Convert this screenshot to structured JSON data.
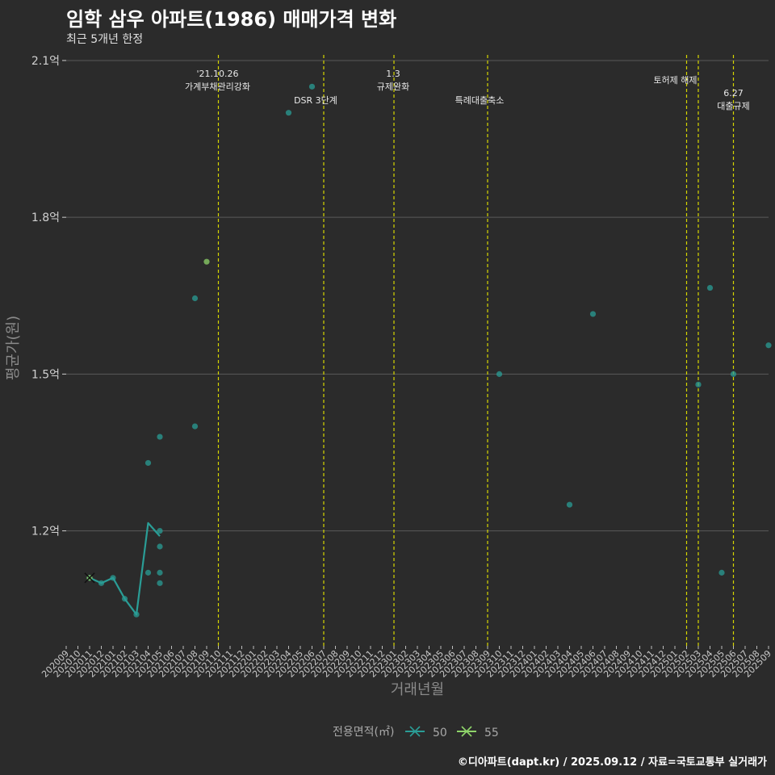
{
  "title": "임학 삼우 아파트(1986) 매매가격 변화",
  "subtitle": "최근 5개년 한정",
  "caption": "©디아파트(dapt.kr) / 2025.09.12 / 자료=국토교통부 실거래가",
  "colors": {
    "s50": "#2a9d96",
    "s55": "#8fd46a",
    "vline": "#d6d600",
    "grid": "#5a5a5a",
    "bg": "#2b2b2b"
  },
  "chart_data": {
    "type": "line",
    "xlabel": "거래년월",
    "ylabel": "평균가(원)",
    "ylim": [
      0.98,
      2.12
    ],
    "yticks": [
      1.2,
      1.5,
      1.8,
      2.1
    ],
    "ytick_labels": [
      "1.2억",
      "1.5억",
      "1.8억",
      "2.1억"
    ],
    "categories": [
      "202009",
      "202010",
      "202011",
      "202012",
      "202101",
      "202102",
      "202103",
      "202104",
      "202105",
      "202106",
      "202107",
      "202108",
      "202109",
      "202110",
      "202111",
      "202112",
      "202201",
      "202202",
      "202203",
      "202204",
      "202205",
      "202206",
      "202207",
      "202208",
      "202209",
      "202210",
      "202211",
      "202212",
      "202301",
      "202302",
      "202303",
      "202304",
      "202305",
      "202306",
      "202307",
      "202308",
      "202309",
      "202310",
      "202311",
      "202312",
      "202401",
      "202402",
      "202403",
      "202404",
      "202405",
      "202406",
      "202407",
      "202408",
      "202409",
      "202410",
      "202411",
      "202412",
      "202501",
      "202502",
      "202503",
      "202504",
      "202505",
      "202506",
      "202507",
      "202508",
      "202509"
    ],
    "events": [
      {
        "x": "202110",
        "lines": [
          "'21.10.26",
          "가계부채관리강화"
        ]
      },
      {
        "x": "202207",
        "lines": [
          "DSR 3단계"
        ]
      },
      {
        "x": "202301",
        "lines": [
          "1.3",
          "규제완화"
        ]
      },
      {
        "x": "202309",
        "lines": [
          "특례대출축소"
        ]
      },
      {
        "x": "202502",
        "lines": [
          "토허제 해제"
        ]
      },
      {
        "x": "202503",
        "lines": []
      },
      {
        "x": "202506",
        "lines": [
          "6.27",
          "대출규제"
        ]
      }
    ],
    "series": [
      {
        "name": "50",
        "line": [
          [
            "202011",
            1.11
          ],
          [
            "202012",
            1.1
          ],
          [
            "202101",
            1.11
          ],
          [
            "202102",
            1.07
          ],
          [
            "202103",
            1.04
          ],
          [
            "202104",
            1.215
          ],
          [
            "202105",
            1.19
          ]
        ],
        "points": [
          [
            "202011",
            1.11
          ],
          [
            "202012",
            1.1
          ],
          [
            "202101",
            1.11
          ],
          [
            "202102",
            1.07
          ],
          [
            "202103",
            1.04
          ],
          [
            "202104",
            1.12
          ],
          [
            "202104",
            1.33
          ],
          [
            "202105",
            1.2
          ],
          [
            "202105",
            1.17
          ],
          [
            "202105",
            1.12
          ],
          [
            "202105",
            1.1
          ],
          [
            "202105",
            1.38
          ],
          [
            "202108",
            1.4
          ],
          [
            "202108",
            1.645
          ],
          [
            "202204",
            2.0
          ],
          [
            "202206",
            2.05
          ],
          [
            "202310",
            1.5
          ],
          [
            "202404",
            1.25
          ],
          [
            "202406",
            1.615
          ],
          [
            "202503",
            1.48
          ],
          [
            "202504",
            1.665
          ],
          [
            "202505",
            1.12
          ],
          [
            "202506",
            1.5
          ],
          [
            "202509",
            1.555
          ]
        ]
      },
      {
        "name": "55",
        "line": [],
        "points": [
          [
            "202109",
            1.715
          ],
          [
            "202011",
            1.11
          ]
        ]
      }
    ],
    "legend": {
      "title": "전용면적(㎡)",
      "entries": [
        "50",
        "55"
      ],
      "placement": "bottom"
    }
  }
}
